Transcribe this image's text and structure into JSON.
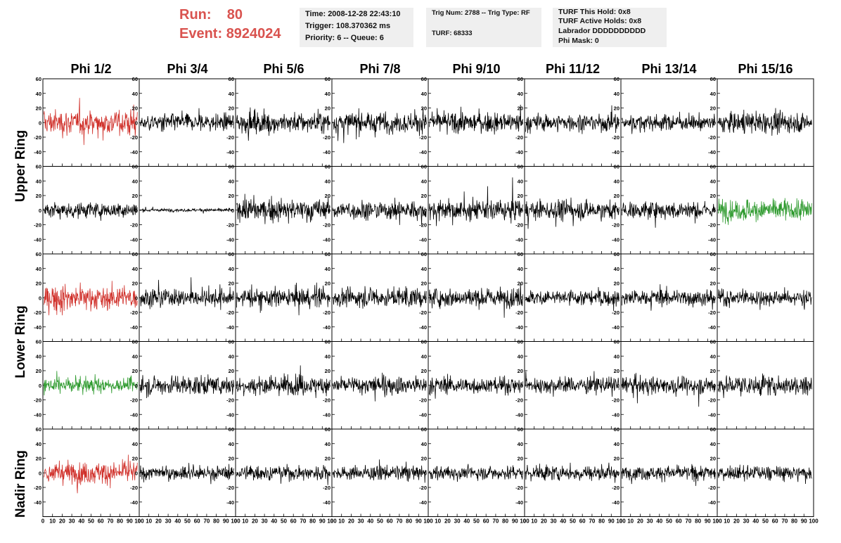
{
  "header": {
    "run_label": "Run:",
    "run_value": "80",
    "event_label": "Event:",
    "event_value": "8924024",
    "time": "Time: 2008-12-28 22:43:10",
    "trigger": "Trigger: 108.370362 ms",
    "priority": "Priority: 6 -- Queue: 6",
    "trig_num": "Trig Num: 2788 -- Trig Type: RF",
    "turf": "TURF: 68333",
    "turf_this_hold": "TURF This Hold: 0x8",
    "turf_active_holds": "TURF Active Holds: 0x8",
    "labrador": "Labrador DDDDDDDDDD",
    "phi_mask": "Phi Mask: 0"
  },
  "colors": {
    "text_red": "#d9534f",
    "trace_black": "#000000",
    "trace_red": "#d0302a",
    "trace_green": "#2e9a2e",
    "info_bg": "#efefef"
  },
  "row_labels": [
    "Upper Ring",
    "Lower Ring",
    "Nadir Ring"
  ],
  "chart_data": {
    "type": "line",
    "columns": [
      "Phi 1/2",
      "Phi 3/4",
      "Phi 5/6",
      "Phi 7/8",
      "Phi 9/10",
      "Phi 11/12",
      "Phi 13/14",
      "Phi 15/16"
    ],
    "rows": 5,
    "xlim": [
      0,
      100
    ],
    "ylim": [
      -60,
      60
    ],
    "x_ticks": [
      0,
      10,
      20,
      30,
      40,
      50,
      60,
      70,
      80,
      90,
      100
    ],
    "y_ticks": [
      -40,
      -20,
      0,
      20,
      40,
      60
    ],
    "samples_per_trace": 260,
    "trace_colors": [
      [
        "red",
        "black",
        "black",
        "black",
        "black",
        "black",
        "black",
        "black"
      ],
      [
        "black",
        "black",
        "black",
        "black",
        "black",
        "black",
        "black",
        "green"
      ],
      [
        "red",
        "black",
        "black",
        "black",
        "black",
        "black",
        "black",
        "black"
      ],
      [
        "green",
        "black",
        "black",
        "black",
        "black",
        "black",
        "black",
        "black"
      ],
      [
        "red",
        "black",
        "black",
        "black",
        "black",
        "black",
        "black",
        "black"
      ]
    ],
    "amplitudes": [
      [
        16,
        11,
        13,
        13,
        13,
        11,
        10,
        13
      ],
      [
        10,
        2,
        14,
        12,
        13,
        12,
        11,
        14
      ],
      [
        15,
        11,
        12,
        12,
        12,
        10,
        10,
        10
      ],
      [
        9,
        12,
        12,
        12,
        10,
        10,
        11,
        13
      ],
      [
        14,
        9,
        9,
        9,
        9,
        10,
        9,
        9
      ]
    ]
  }
}
